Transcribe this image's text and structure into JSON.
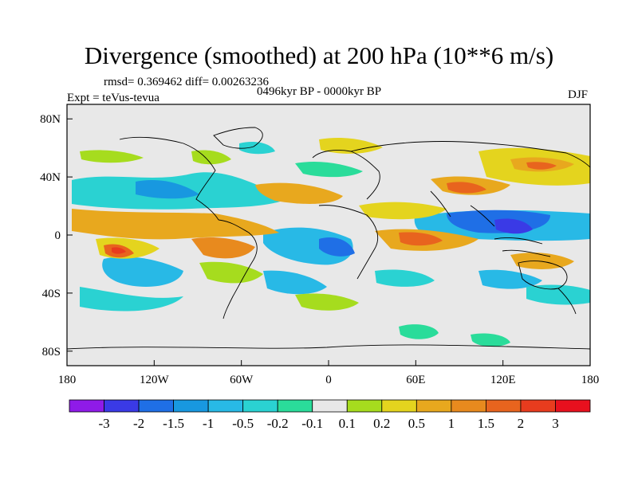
{
  "title": "Divergence (smoothed) at 200 hPa (10**6 m/s)",
  "stats": "rmsd= 0.369462 diff= 0.00263236",
  "experiment": "Expt = teVus-tevua",
  "period": "0496kyr BP - 0000kyr BP",
  "season": "DJF",
  "x_ticks": [
    "180",
    "120W",
    "60W",
    "0",
    "60E",
    "120E",
    "180"
  ],
  "y_ticks": [
    "80N",
    "40N",
    "0",
    "40S",
    "80S"
  ],
  "colorbar": {
    "labels": [
      "-3",
      "-2",
      "-1.5",
      "-1",
      "-0.5",
      "-0.2",
      "-0.1",
      "0.1",
      "0.2",
      "0.5",
      "1",
      "1.5",
      "2",
      "3"
    ],
    "colors": [
      "#8f1be8",
      "#3a3ae6",
      "#1f6fe6",
      "#1898e0",
      "#28b9e6",
      "#2ad2d2",
      "#2adc9a",
      "#e8e8e8",
      "#a6dc1e",
      "#e4d41e",
      "#e8a81e",
      "#e88a1e",
      "#e8641e",
      "#e83c1e",
      "#e8101e"
    ]
  },
  "map": {
    "background_color": "#e8e8e8",
    "lon_range": [
      -180,
      180
    ],
    "lat_range": [
      -90,
      90
    ]
  }
}
